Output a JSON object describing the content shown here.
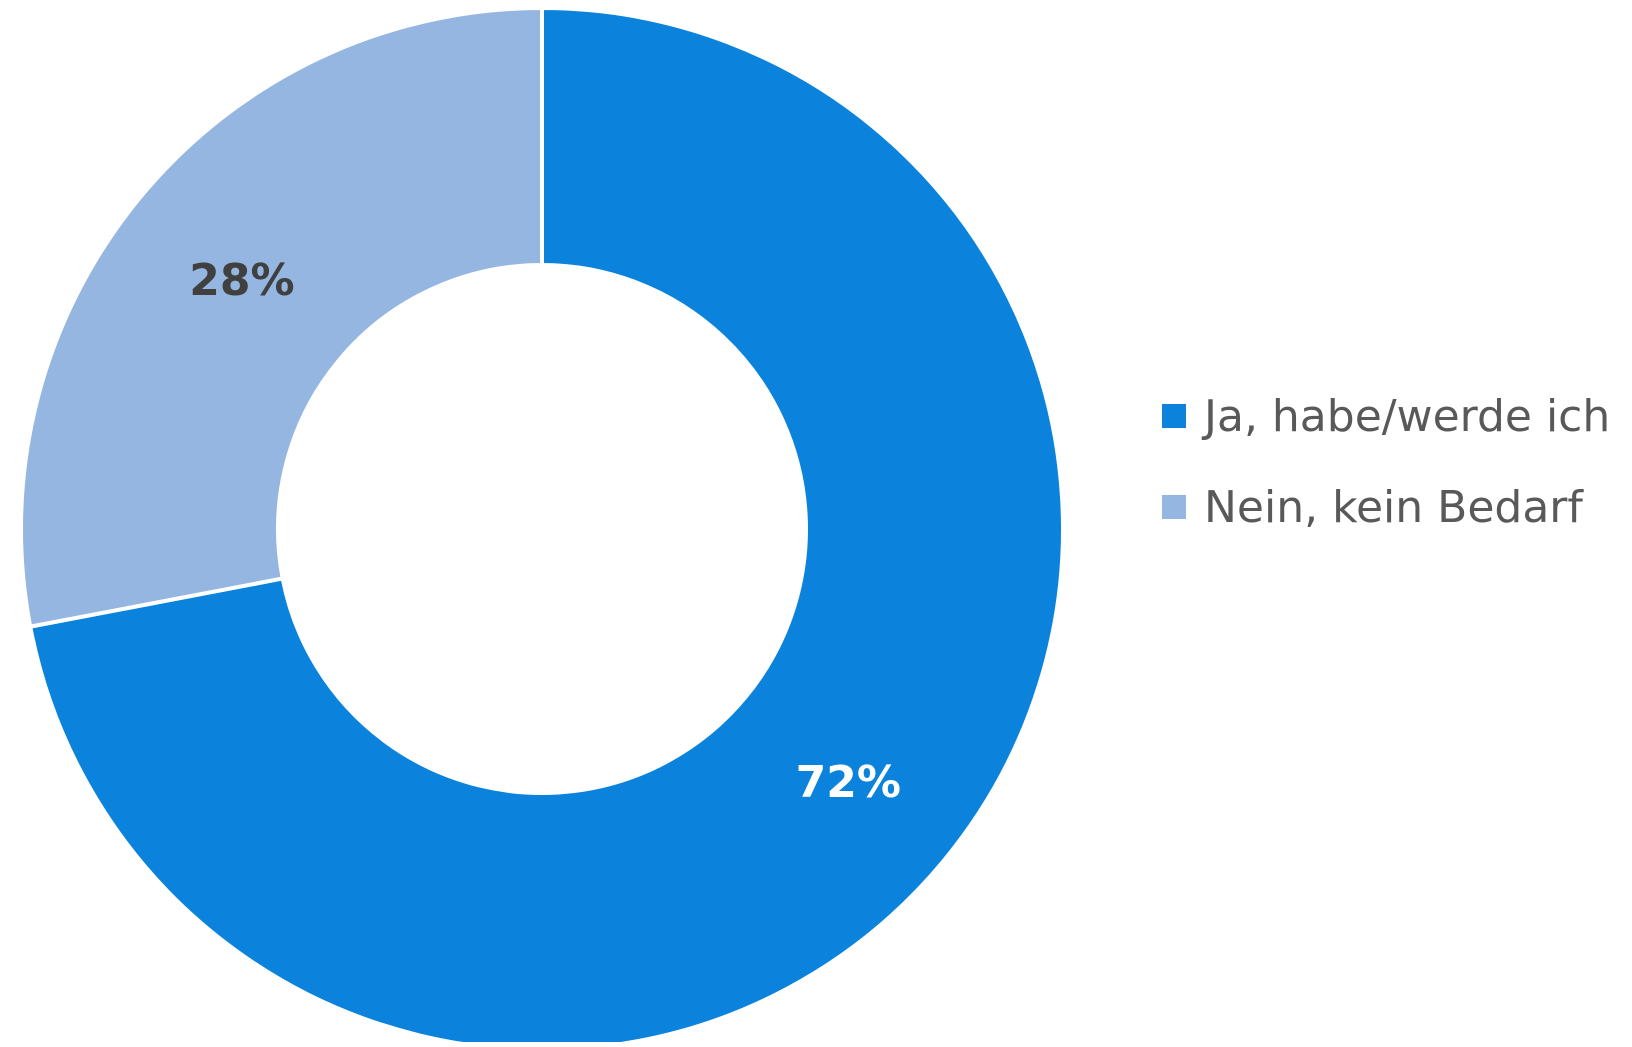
{
  "chart_data": {
    "type": "pie",
    "subtype": "donut",
    "categories": [
      "Ja, habe/werde ich",
      "Nein, kein Bedarf"
    ],
    "values": [
      72,
      28
    ],
    "unit": "%",
    "data_labels": [
      "72%",
      "28%"
    ],
    "colors": [
      "#0b83dc",
      "#94b6e1"
    ],
    "label_colors": [
      "#ffffff",
      "#404040"
    ],
    "legend_position": "right",
    "start_angle": "top, clockwise"
  }
}
